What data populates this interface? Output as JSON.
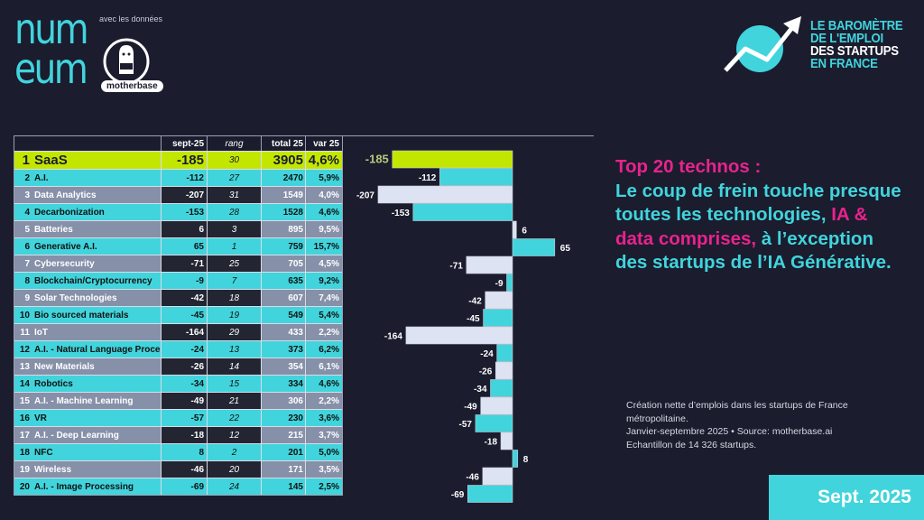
{
  "branding": {
    "numeum_logo": "num eum",
    "partner_label": "avec les données",
    "motherbase_label": "motherbase",
    "barometer_lines": [
      "LE BAROMÈTRE",
      "DE L'EMPLOI",
      "DES STARTUPS",
      "EN FRANCE"
    ]
  },
  "table": {
    "headers": {
      "name": "",
      "sept": "sept-25",
      "rang": "rang",
      "total": "total 25",
      "var": "var 25"
    },
    "rows": [
      {
        "idx": "1",
        "name": "SaaS",
        "sept": "-185",
        "rang": "30",
        "total": "3905",
        "var": "4,6%",
        "style": "lime"
      },
      {
        "idx": "2",
        "name": "A.I.",
        "sept": "-112",
        "rang": "27",
        "total": "2470",
        "var": "5,9%",
        "style": "cyan"
      },
      {
        "idx": "3",
        "name": "Data Analytics",
        "sept": "-207",
        "rang": "31",
        "total": "1549",
        "var": "4,0%",
        "style": "gray"
      },
      {
        "idx": "4",
        "name": "Decarbonization",
        "sept": "-153",
        "rang": "28",
        "total": "1528",
        "var": "4,6%",
        "style": "cyan"
      },
      {
        "idx": "5",
        "name": "Batteries",
        "sept": "6",
        "rang": "3",
        "total": "895",
        "var": "9,5%",
        "style": "gray"
      },
      {
        "idx": "6",
        "name": "Generative A.I.",
        "sept": "65",
        "rang": "1",
        "total": "759",
        "var": "15,7%",
        "style": "cyan"
      },
      {
        "idx": "7",
        "name": "Cybersecurity",
        "sept": "-71",
        "rang": "25",
        "total": "705",
        "var": "4,5%",
        "style": "gray"
      },
      {
        "idx": "8",
        "name": "Blockchain/Cryptocurrency",
        "sept": "-9",
        "rang": "7",
        "total": "635",
        "var": "9,2%",
        "style": "cyan"
      },
      {
        "idx": "9",
        "name": "Solar Technologies",
        "sept": "-42",
        "rang": "18",
        "total": "607",
        "var": "7,4%",
        "style": "gray"
      },
      {
        "idx": "10",
        "name": "Bio sourced materials",
        "sept": "-45",
        "rang": "19",
        "total": "549",
        "var": "5,4%",
        "style": "cyan"
      },
      {
        "idx": "11",
        "name": "IoT",
        "sept": "-164",
        "rang": "29",
        "total": "433",
        "var": "2,2%",
        "style": "gray"
      },
      {
        "idx": "12",
        "name": "A.I. - Natural Language Proce",
        "sept": "-24",
        "rang": "13",
        "total": "373",
        "var": "6,2%",
        "style": "cyan"
      },
      {
        "idx": "13",
        "name": "New Materials",
        "sept": "-26",
        "rang": "14",
        "total": "354",
        "var": "6,1%",
        "style": "gray"
      },
      {
        "idx": "14",
        "name": "Robotics",
        "sept": "-34",
        "rang": "15",
        "total": "334",
        "var": "4,6%",
        "style": "cyan"
      },
      {
        "idx": "15",
        "name": "A.I. - Machine Learning",
        "sept": "-49",
        "rang": "21",
        "total": "306",
        "var": "2,2%",
        "style": "gray"
      },
      {
        "idx": "16",
        "name": "VR",
        "sept": "-57",
        "rang": "22",
        "total": "230",
        "var": "3,6%",
        "style": "cyan"
      },
      {
        "idx": "17",
        "name": "A.I. - Deep Learning",
        "sept": "-18",
        "rang": "12",
        "total": "215",
        "var": "3,7%",
        "style": "gray"
      },
      {
        "idx": "18",
        "name": "NFC",
        "sept": "8",
        "rang": "2",
        "total": "201",
        "var": "5,0%",
        "style": "cyan"
      },
      {
        "idx": "19",
        "name": "Wireless",
        "sept": "-46",
        "rang": "20",
        "total": "171",
        "var": "3,5%",
        "style": "gray"
      },
      {
        "idx": "20",
        "name": "A.I. - Image Processing",
        "sept": "-69",
        "rang": "24",
        "total": "145",
        "var": "2,5%",
        "style": "cyan"
      }
    ]
  },
  "chart_data": {
    "type": "bar",
    "orientation": "horizontal",
    "title": "",
    "xlabel": "",
    "ylabel": "",
    "categories": [
      "SaaS",
      "A.I.",
      "Data Analytics",
      "Decarbonization",
      "Batteries",
      "Generative A.I.",
      "Cybersecurity",
      "Blockchain/Cryptocurrency",
      "Solar Technologies",
      "Bio sourced materials",
      "IoT",
      "A.I. - Natural Language Proce",
      "New Materials",
      "Robotics",
      "A.I. - Machine Learning",
      "VR",
      "A.I. - Deep Learning",
      "NFC",
      "Wireless",
      "A.I. - Image Processing"
    ],
    "values": [
      -185,
      -112,
      -207,
      -153,
      6,
      65,
      -71,
      -9,
      -42,
      -45,
      -164,
      -24,
      -26,
      -34,
      -49,
      -57,
      -18,
      8,
      -46,
      -69
    ],
    "xlim": [
      -207,
      80
    ],
    "grid": false,
    "legend": "none",
    "colors": {
      "highlight": "#c3e600",
      "even": "#41d4dc",
      "odd": "#dde3f2"
    }
  },
  "headline": {
    "title": "Top 20 technos :",
    "part1": "Le coup de frein touche presque toutes les technologies,",
    "highlight": "IA & data comprises,",
    "part2": "à l’exception des startups de l’IA Générative."
  },
  "note": {
    "line1": "Création nette d’emplois dans les startups de France métropolitaine.",
    "line2": "Janvier-septembre 2025 • Source: motherbase.ai",
    "line3": "Echantillon de 14 326 startups."
  },
  "badge": {
    "label": "Sept. 2025"
  },
  "colors": {
    "background": "#1b1c2e",
    "cyan": "#41d4dc",
    "pink": "#e8238c",
    "lime": "#c3e600"
  }
}
